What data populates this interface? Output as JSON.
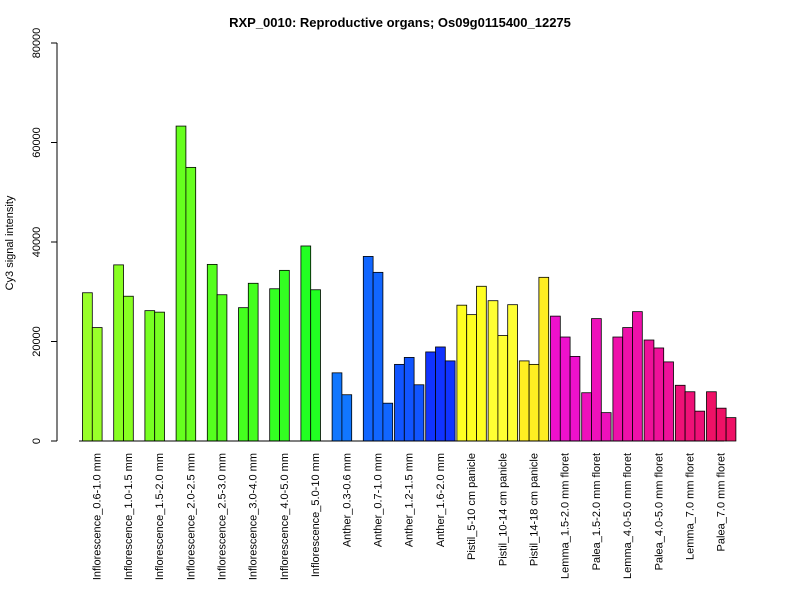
{
  "chart_data": {
    "type": "bar",
    "title": "RXP_0010: Reproductive organs; Os09g0115400_12275",
    "ylabel": "Cy3 signal intensity",
    "xlabel": "",
    "ylim": [
      0,
      80000
    ],
    "yticks": [
      0,
      20000,
      40000,
      60000,
      80000
    ],
    "grid": false,
    "groups": [
      {
        "label": "Inflorescence_0.6-1.0 mm",
        "color": "#99FF2A",
        "values": [
          29800,
          22800
        ]
      },
      {
        "label": "Inflorescence_1.0-1.5 mm",
        "color": "#88FF22",
        "values": [
          35400,
          29100
        ]
      },
      {
        "label": "Inflorescence_1.5-2.0 mm",
        "color": "#77FF22",
        "values": [
          26200,
          25900
        ]
      },
      {
        "label": "Inflorescence_2.0-2.5 mm",
        "color": "#66FF1E",
        "values": [
          63300,
          55000
        ]
      },
      {
        "label": "Inflorescence_2.5-3.0 mm",
        "color": "#55FF1E",
        "values": [
          35500,
          29400
        ]
      },
      {
        "label": "Inflorescence_3.0-4.0 mm",
        "color": "#44FF1E",
        "values": [
          26800,
          31700
        ]
      },
      {
        "label": "Inflorescence_4.0-5.0 mm",
        "color": "#33FF22",
        "values": [
          30600,
          34300
        ]
      },
      {
        "label": "Inflorescence_5.0-10 mm",
        "color": "#22FF22",
        "values": [
          39200,
          30400
        ]
      },
      {
        "label": "Anther_0.3-0.6 mm",
        "color": "#1177FF",
        "values": [
          13700,
          9300
        ]
      },
      {
        "label": "Anther_0.7-1.0 mm",
        "color": "#1166FF",
        "values": [
          37100,
          33900,
          7600
        ]
      },
      {
        "label": "Anther_1.2-1.5 mm",
        "color": "#1155FF",
        "values": [
          15400,
          16800,
          11300
        ]
      },
      {
        "label": "Anther_1.6-2.0 mm",
        "color": "#1133FF",
        "values": [
          17900,
          18900,
          16100
        ]
      },
      {
        "label": "Pistil_5-10 cm panicle",
        "color": "#FFFF22",
        "values": [
          27300,
          25400,
          31100
        ]
      },
      {
        "label": "Pistil_10-14 cm panicle",
        "color": "#FFFF33",
        "values": [
          28200,
          21200,
          27400
        ]
      },
      {
        "label": "Pistil_14-18 cm panicle",
        "color": "#FFEE22",
        "values": [
          16100,
          15400,
          32900
        ]
      },
      {
        "label": "Lemma_1.5-2.0 mm floret",
        "color": "#EE11CC",
        "values": [
          25100,
          20900,
          17000
        ]
      },
      {
        "label": "Palea_1.5-2.0 mm floret",
        "color": "#EE11BB",
        "values": [
          9700,
          24600,
          5700
        ]
      },
      {
        "label": "Lemma_4.0-5.0 mm floret",
        "color": "#EE11AA",
        "values": [
          20900,
          22800,
          26000
        ]
      },
      {
        "label": "Palea_4.0-5.0 mm floret",
        "color": "#EE1199",
        "values": [
          20300,
          18700,
          15900
        ]
      },
      {
        "label": "Lemma_7.0 mm floret",
        "color": "#EE1177",
        "values": [
          11200,
          9900,
          6000
        ]
      },
      {
        "label": "Palea_7.0 mm floret",
        "color": "#EE1166",
        "values": [
          9900,
          6600,
          4700
        ]
      }
    ]
  }
}
